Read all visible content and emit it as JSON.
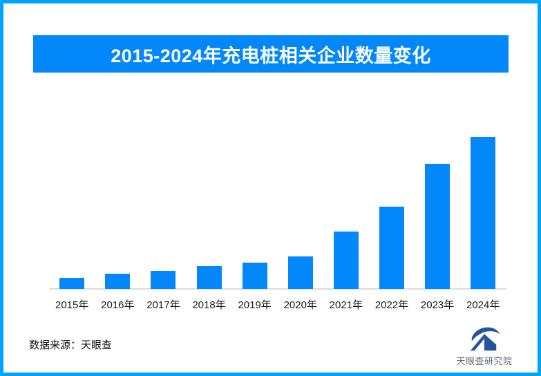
{
  "page": {
    "border_color": "#03a2f9",
    "background_color": "#ffffff"
  },
  "header": {
    "title": "2015-2024年充电桩相关企业数量变化",
    "banner_color": "#0288fb",
    "title_color": "#ffffff"
  },
  "chart_data": {
    "type": "bar",
    "title": "2015-2024年充电桩相关企业数量变化",
    "categories": [
      "2015年",
      "2016年",
      "2017年",
      "2018年",
      "2019年",
      "2020年",
      "2021年",
      "2022年",
      "2023年",
      "2024年"
    ],
    "values": [
      7.2,
      9.8,
      11.8,
      15,
      17,
      21,
      37.5,
      54,
      82,
      100
    ],
    "units": "relative height, tallest bar (2024) = 100; no y-axis or data labels shown",
    "xlabel": "",
    "ylabel": "",
    "ylim": [
      0,
      110
    ],
    "grid": false,
    "legend": false,
    "bar_color": "#0288fb",
    "axis_line_color": "#dcdcdc"
  },
  "footer": {
    "source_label": "数据来源：天眼查",
    "brand_name": "天眼查研究院",
    "brand_logo_color": "#24549e",
    "brand_text_color": "#5f6b76"
  }
}
